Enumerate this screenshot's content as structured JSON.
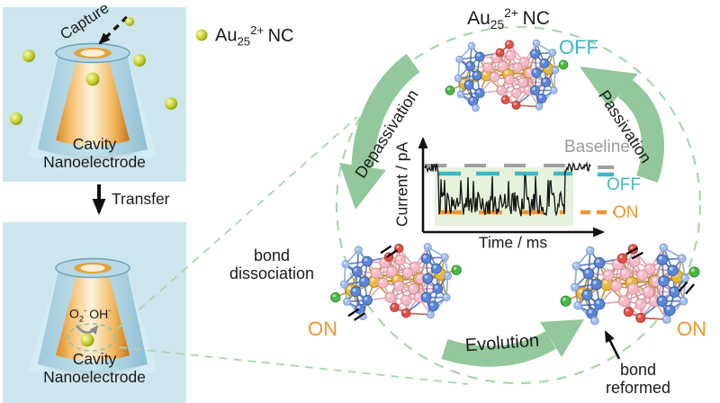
{
  "legend": {
    "au_prefix": "Au",
    "au_sub": "25",
    "au_sup": "2+",
    "au_suffix": "NC"
  },
  "panel_top": {
    "capture": "Capture",
    "cavity_line1": "Cavity",
    "cavity_line2": "Nanoelectrode"
  },
  "transfer_label": "Transfer",
  "panel_bottom": {
    "o2_base": "O",
    "o2_sub": "2",
    "o2_sup": "-",
    "oh_base": "OH",
    "oh_sup": "-",
    "cavity_line1": "Cavity",
    "cavity_line2": "Nanoelectrode"
  },
  "cycle": {
    "off_state": "OFF",
    "on_state": "ON",
    "depassivation": "Depassivation",
    "passivation": "Passivation",
    "evolution": "Evolution",
    "bond_dissociation_line1": "bond",
    "bond_dissociation_line2": "dissociation",
    "bond_reformed_line1": "bond",
    "bond_reformed_line2": "reformed"
  },
  "plot": {
    "ylabel": "Current / pA",
    "xlabel": "Time / ms",
    "legend_baseline": "Baseline",
    "legend_off": "OFF",
    "legend_on": "ON"
  },
  "colors": {
    "off_teal": "#3eb7c7",
    "on_orange": "#f0962c",
    "baseline_gray": "#9b9b9b",
    "arrow_green": "#92c89b",
    "circle_green": "#a9d5b0",
    "panel_bg": "#cde6ed",
    "dot_yellow": "#c3ce26"
  },
  "chart_data": {
    "type": "line",
    "title": "",
    "xlabel": "Time / ms",
    "ylabel": "Current / pA",
    "x_ticks": [],
    "y_ticks": [],
    "grid": false,
    "legend_entries": [
      "Baseline",
      "OFF",
      "ON"
    ],
    "legend_position": "right",
    "levels_relative": {
      "baseline": 1.0,
      "off": 0.93,
      "on": 0.5
    },
    "segments": [
      {
        "t_rel": [
          0.0,
          0.08
        ],
        "state": "baseline"
      },
      {
        "t_rel": [
          0.08,
          0.84
        ],
        "state": "ON level, noisy, with brief OFF spikes"
      },
      {
        "t_rel": [
          0.84,
          1.0
        ],
        "state": "baseline"
      }
    ],
    "description": "Stochastic single-nanocluster blinking current trace: current drops from baseline to a noisy ON level, repeatedly spikes toward the OFF level, then returns to baseline; no numeric tick labels shown"
  }
}
